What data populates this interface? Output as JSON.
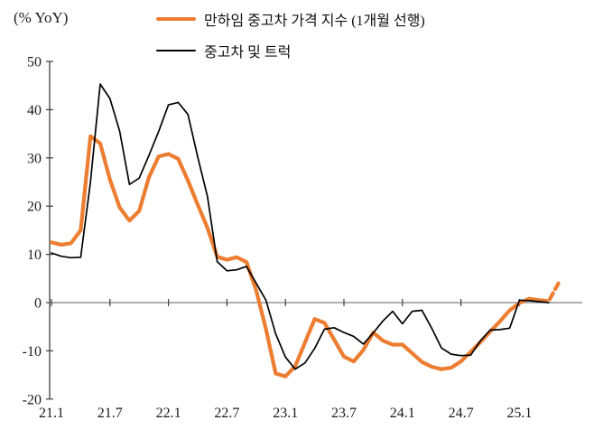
{
  "header": {
    "axis_unit_label": "(% YoY)"
  },
  "chart_data": {
    "type": "line",
    "title": "",
    "ylabel": "(% YoY)",
    "xlabel": "",
    "grid": false,
    "legend_position": "top-center",
    "ylim": [
      -20,
      50
    ],
    "yticks": [
      50,
      40,
      30,
      20,
      10,
      0,
      -10,
      -20
    ],
    "x_tick_labels": [
      "21.1",
      "21.7",
      "22.1",
      "22.7",
      "23.1",
      "23.7",
      "24.1",
      "24.7",
      "25.1"
    ],
    "x_tick_interval_months": 6,
    "x_months": [
      "21.1",
      "21.2",
      "21.3",
      "21.4",
      "21.5",
      "21.6",
      "21.7",
      "21.8",
      "21.9",
      "21.10",
      "21.11",
      "21.12",
      "22.1",
      "22.2",
      "22.3",
      "22.4",
      "22.5",
      "22.6",
      "22.7",
      "22.8",
      "22.9",
      "22.10",
      "22.11",
      "22.12",
      "23.1",
      "23.2",
      "23.3",
      "23.4",
      "23.5",
      "23.6",
      "23.7",
      "23.8",
      "23.9",
      "23.10",
      "23.11",
      "23.12",
      "24.1",
      "24.2",
      "24.3",
      "24.4",
      "24.5",
      "24.6",
      "24.7",
      "24.8",
      "24.9",
      "24.10",
      "24.11",
      "24.12",
      "25.1",
      "25.2",
      "25.3",
      "25.4",
      "25.5"
    ],
    "axis_color": "#3f3f3f",
    "zero_line_color": "#7f7f7f",
    "series": [
      {
        "name": "만하임 중고차 가격 지수 (1개월 선행)",
        "color": "#ED7D31",
        "line_width": 4.2,
        "dashed_from_index": 50,
        "values": [
          12.5,
          12.0,
          12.3,
          15.0,
          34.5,
          33.0,
          25.5,
          19.7,
          17.0,
          19.0,
          26.0,
          30.3,
          30.8,
          29.8,
          25.3,
          20.3,
          15.5,
          9.5,
          8.9,
          9.4,
          8.4,
          2.5,
          -5.5,
          -14.7,
          -15.3,
          -13.2,
          -8.3,
          -3.4,
          -4.2,
          -7.7,
          -11.2,
          -12.2,
          -9.8,
          -6.2,
          -7.9,
          -8.7,
          -8.7,
          -10.5,
          -12.3,
          -13.3,
          -13.8,
          -13.5,
          -12.2,
          -10.2,
          -8.2,
          -6.0,
          -3.9,
          -1.6,
          -0.1,
          0.8,
          0.5,
          0.3,
          4.0
        ]
      },
      {
        "name": "중고차 및 트럭",
        "color": "#000000",
        "line_width": 1.7,
        "dashed_from_index": null,
        "values": [
          10.3,
          9.6,
          9.3,
          9.4,
          25.0,
          45.3,
          42.3,
          35.5,
          24.5,
          25.8,
          30.5,
          35.5,
          41.0,
          41.5,
          39.0,
          30.2,
          22.0,
          8.5,
          6.6,
          6.8,
          7.5,
          4.0,
          0.5,
          -6.5,
          -11.3,
          -13.8,
          -12.5,
          -9.5,
          -5.5,
          -5.2,
          -6.2,
          -7.0,
          -8.6,
          -6.3,
          -3.8,
          -1.8,
          -4.4,
          -1.8,
          -1.6,
          -5.3,
          -9.4,
          -10.7,
          -11.0,
          -10.9,
          -7.9,
          -5.7,
          -5.6,
          -5.3,
          0.5,
          0.4,
          0.2,
          0.0
        ]
      }
    ]
  }
}
